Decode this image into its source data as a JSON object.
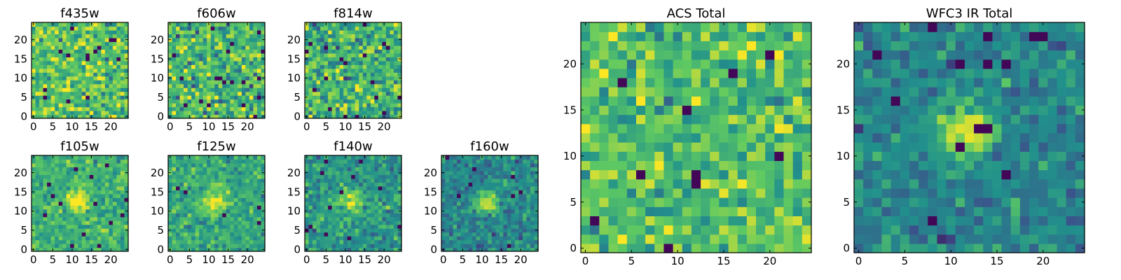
{
  "colormap": "viridis",
  "colormap_stops": [
    "#440154",
    "#3b528b",
    "#21918c",
    "#5ec962",
    "#fde725"
  ],
  "chart_data": [
    {
      "type": "heatmap",
      "title": "f435w",
      "xticks": [
        "0",
        "5",
        "10",
        "15",
        "20"
      ],
      "yticks": [
        "0",
        "5",
        "10",
        "15",
        "20"
      ],
      "grid_size": [
        25,
        25
      ],
      "xlim": [
        0,
        24
      ],
      "ylim": [
        0,
        24
      ],
      "noise": {
        "mean": 0.74,
        "sd": 0.15,
        "blob": 0,
        "seed": 11
      }
    },
    {
      "type": "heatmap",
      "title": "f606w",
      "xticks": [
        "0",
        "5",
        "10",
        "15",
        "20"
      ],
      "yticks": [
        "0",
        "5",
        "10",
        "15",
        "20"
      ],
      "grid_size": [
        25,
        25
      ],
      "xlim": [
        0,
        24
      ],
      "ylim": [
        0,
        24
      ],
      "noise": {
        "mean": 0.66,
        "sd": 0.16,
        "blob": 0,
        "seed": 23
      }
    },
    {
      "type": "heatmap",
      "title": "f814w",
      "xticks": [
        "0",
        "5",
        "10",
        "15",
        "20"
      ],
      "yticks": [
        "0",
        "5",
        "10",
        "15",
        "20"
      ],
      "grid_size": [
        25,
        25
      ],
      "xlim": [
        0,
        24
      ],
      "ylim": [
        0,
        24
      ],
      "noise": {
        "mean": 0.66,
        "sd": 0.16,
        "blob": 0,
        "seed": 37
      }
    },
    {
      "type": "heatmap",
      "title": "f105w",
      "xticks": [
        "0",
        "5",
        "10",
        "15",
        "20"
      ],
      "yticks": [
        "0",
        "5",
        "10",
        "15",
        "20"
      ],
      "grid_size": [
        25,
        25
      ],
      "xlim": [
        0,
        24
      ],
      "ylim": [
        0,
        24
      ],
      "noise": {
        "mean": 0.64,
        "sd": 0.1,
        "blob": 0.35,
        "seed": 41
      }
    },
    {
      "type": "heatmap",
      "title": "f125w",
      "xticks": [
        "0",
        "5",
        "10",
        "15",
        "20"
      ],
      "yticks": [
        "0",
        "5",
        "10",
        "15",
        "20"
      ],
      "grid_size": [
        25,
        25
      ],
      "xlim": [
        0,
        24
      ],
      "ylim": [
        0,
        24
      ],
      "noise": {
        "mean": 0.6,
        "sd": 0.1,
        "blob": 0.4,
        "seed": 53
      }
    },
    {
      "type": "heatmap",
      "title": "f140w",
      "xticks": [
        "0",
        "5",
        "10",
        "15",
        "20"
      ],
      "yticks": [
        "0",
        "5",
        "10",
        "15",
        "20"
      ],
      "grid_size": [
        25,
        25
      ],
      "xlim": [
        0,
        24
      ],
      "ylim": [
        0,
        24
      ],
      "noise": {
        "mean": 0.52,
        "sd": 0.1,
        "blob": 0.45,
        "seed": 67
      }
    },
    {
      "type": "heatmap",
      "title": "f160w",
      "xticks": [
        "0",
        "5",
        "10",
        "15",
        "20"
      ],
      "yticks": [
        "0",
        "5",
        "10",
        "15",
        "20"
      ],
      "grid_size": [
        25,
        25
      ],
      "xlim": [
        0,
        24
      ],
      "ylim": [
        0,
        24
      ],
      "noise": {
        "mean": 0.46,
        "sd": 0.1,
        "blob": 0.5,
        "seed": 79
      }
    },
    {
      "type": "heatmap",
      "title": "ACS Total",
      "xticks": [
        "0",
        "5",
        "10",
        "15",
        "20"
      ],
      "yticks": [
        "0",
        "5",
        "10",
        "15",
        "20"
      ],
      "grid_size": [
        25,
        25
      ],
      "xlim": [
        0,
        24
      ],
      "ylim": [
        0,
        24
      ],
      "noise": {
        "mean": 0.7,
        "sd": 0.13,
        "blob": 0,
        "seed": 97
      }
    },
    {
      "type": "heatmap",
      "title": "WFC3 IR Total",
      "xticks": [
        "0",
        "5",
        "10",
        "15",
        "20"
      ],
      "yticks": [
        "0",
        "5",
        "10",
        "15",
        "20"
      ],
      "grid_size": [
        25,
        25
      ],
      "xlim": [
        0,
        24
      ],
      "ylim": [
        0,
        24
      ],
      "noise": {
        "mean": 0.45,
        "sd": 0.09,
        "blob": 0.52,
        "seed": 113
      }
    }
  ]
}
